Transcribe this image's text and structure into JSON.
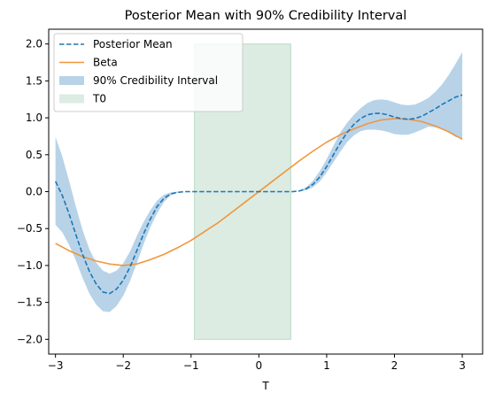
{
  "chart_data": {
    "type": "line",
    "title": "Posterior Mean with 90% Credibility Interval",
    "xlabel": "T",
    "ylabel": "",
    "xlim": [
      -3.1,
      3.3
    ],
    "ylim": [
      -2.2,
      2.2
    ],
    "xticks": [
      -3,
      -2,
      -1,
      0,
      1,
      2,
      3
    ],
    "xtick_labels": [
      "−3",
      "−2",
      "−1",
      "0",
      "1",
      "2",
      "3"
    ],
    "yticks": [
      -2.0,
      -1.5,
      -1.0,
      -0.5,
      0.0,
      0.5,
      1.0,
      1.5,
      2.0
    ],
    "ytick_labels": [
      "−2.0",
      "−1.5",
      "−1.0",
      "−0.5",
      "0.0",
      "0.5",
      "1.0",
      "1.5",
      "2.0"
    ],
    "grid": false,
    "legend_position": "top-left",
    "legend": [
      {
        "label": "Posterior Mean",
        "kind": "dashed-line",
        "color": "#1f77b4"
      },
      {
        "label": "Beta",
        "kind": "line",
        "color": "#f0963c"
      },
      {
        "label": "90% Credibility Interval",
        "kind": "patch",
        "color": "#b8d3e8"
      },
      {
        "label": "T0",
        "kind": "patch",
        "color": "#dcece2"
      }
    ],
    "t0_region": {
      "x0": -0.95,
      "x1": 0.47,
      "y0": -2.0,
      "y1": 2.0,
      "color": "#dcece2",
      "edge": "#b9dcc4"
    },
    "series": [
      {
        "name": "Posterior Mean",
        "style": "dashed",
        "color": "#1f77b4",
        "x": [
          -3.0,
          -2.9,
          -2.8,
          -2.7,
          -2.6,
          -2.5,
          -2.4,
          -2.3,
          -2.2,
          -2.1,
          -2.0,
          -1.9,
          -1.8,
          -1.7,
          -1.6,
          -1.5,
          -1.4,
          -1.3,
          -1.2,
          -1.1,
          -1.0,
          -0.9,
          -0.5,
          0.0,
          0.3,
          0.5,
          0.6,
          0.7,
          0.8,
          0.9,
          1.0,
          1.1,
          1.2,
          1.3,
          1.4,
          1.5,
          1.6,
          1.7,
          1.8,
          1.9,
          2.0,
          2.1,
          2.2,
          2.3,
          2.4,
          2.5,
          2.6,
          2.7,
          2.8,
          2.9,
          3.0
        ],
        "values": [
          0.14,
          -0.05,
          -0.3,
          -0.58,
          -0.85,
          -1.08,
          -1.25,
          -1.36,
          -1.38,
          -1.32,
          -1.2,
          -1.02,
          -0.8,
          -0.57,
          -0.37,
          -0.2,
          -0.09,
          -0.03,
          -0.01,
          0.0,
          0.0,
          0.0,
          0.0,
          0.0,
          0.0,
          0.0,
          0.01,
          0.04,
          0.1,
          0.2,
          0.34,
          0.5,
          0.66,
          0.8,
          0.91,
          0.99,
          1.04,
          1.06,
          1.06,
          1.04,
          1.01,
          0.99,
          0.98,
          0.99,
          1.02,
          1.07,
          1.12,
          1.18,
          1.23,
          1.28,
          1.31
        ]
      },
      {
        "name": "Beta",
        "style": "solid",
        "color": "#f0963c",
        "x": [
          -3.0,
          -2.8,
          -2.6,
          -2.4,
          -2.2,
          -2.0,
          -1.8,
          -1.6,
          -1.4,
          -1.2,
          -1.0,
          -0.8,
          -0.6,
          -0.4,
          -0.2,
          0.0,
          0.2,
          0.4,
          0.6,
          0.8,
          1.0,
          1.2,
          1.4,
          1.6,
          1.8,
          2.0,
          2.2,
          2.4,
          2.6,
          2.8,
          3.0
        ],
        "values": [
          -0.7,
          -0.8,
          -0.88,
          -0.94,
          -0.98,
          -1.0,
          -0.98,
          -0.92,
          -0.85,
          -0.76,
          -0.66,
          -0.54,
          -0.42,
          -0.28,
          -0.14,
          0.0,
          0.14,
          0.28,
          0.42,
          0.55,
          0.67,
          0.77,
          0.85,
          0.92,
          0.97,
          0.99,
          0.98,
          0.95,
          0.89,
          0.81,
          0.71
        ]
      }
    ],
    "interval": {
      "name": "90% Credibility Interval",
      "color": "#b8d3e8",
      "x": [
        -3.0,
        -2.9,
        -2.8,
        -2.7,
        -2.6,
        -2.5,
        -2.4,
        -2.3,
        -2.2,
        -2.1,
        -2.0,
        -1.9,
        -1.8,
        -1.7,
        -1.6,
        -1.5,
        -1.4,
        -1.3,
        -1.2,
        -1.1,
        -1.0,
        -0.9,
        -0.5,
        0.0,
        0.3,
        0.5,
        0.6,
        0.7,
        0.8,
        0.9,
        1.0,
        1.1,
        1.2,
        1.3,
        1.4,
        1.5,
        1.6,
        1.7,
        1.8,
        1.9,
        2.0,
        2.1,
        2.2,
        2.3,
        2.4,
        2.5,
        2.6,
        2.7,
        2.8,
        2.9,
        3.0
      ],
      "lower": [
        -0.45,
        -0.55,
        -0.72,
        -0.93,
        -1.17,
        -1.38,
        -1.53,
        -1.62,
        -1.63,
        -1.55,
        -1.41,
        -1.21,
        -0.97,
        -0.71,
        -0.48,
        -0.29,
        -0.14,
        -0.05,
        -0.015,
        0.0,
        0.0,
        0.0,
        0.0,
        0.0,
        0.0,
        0.0,
        0.005,
        0.02,
        0.06,
        0.14,
        0.26,
        0.4,
        0.54,
        0.67,
        0.76,
        0.82,
        0.84,
        0.84,
        0.83,
        0.81,
        0.78,
        0.77,
        0.77,
        0.8,
        0.84,
        0.88,
        0.87,
        0.85,
        0.8,
        0.74,
        0.72
      ],
      "upper": [
        0.74,
        0.48,
        0.15,
        -0.2,
        -0.52,
        -0.78,
        -0.96,
        -1.07,
        -1.11,
        -1.07,
        -0.97,
        -0.81,
        -0.6,
        -0.41,
        -0.25,
        -0.12,
        -0.04,
        -0.01,
        0.0,
        0.0,
        0.0,
        0.0,
        0.0,
        0.0,
        0.0,
        0.0,
        0.015,
        0.06,
        0.15,
        0.28,
        0.44,
        0.62,
        0.8,
        0.93,
        1.04,
        1.13,
        1.2,
        1.24,
        1.25,
        1.24,
        1.21,
        1.18,
        1.17,
        1.18,
        1.22,
        1.27,
        1.35,
        1.45,
        1.58,
        1.73,
        1.89
      ]
    }
  }
}
